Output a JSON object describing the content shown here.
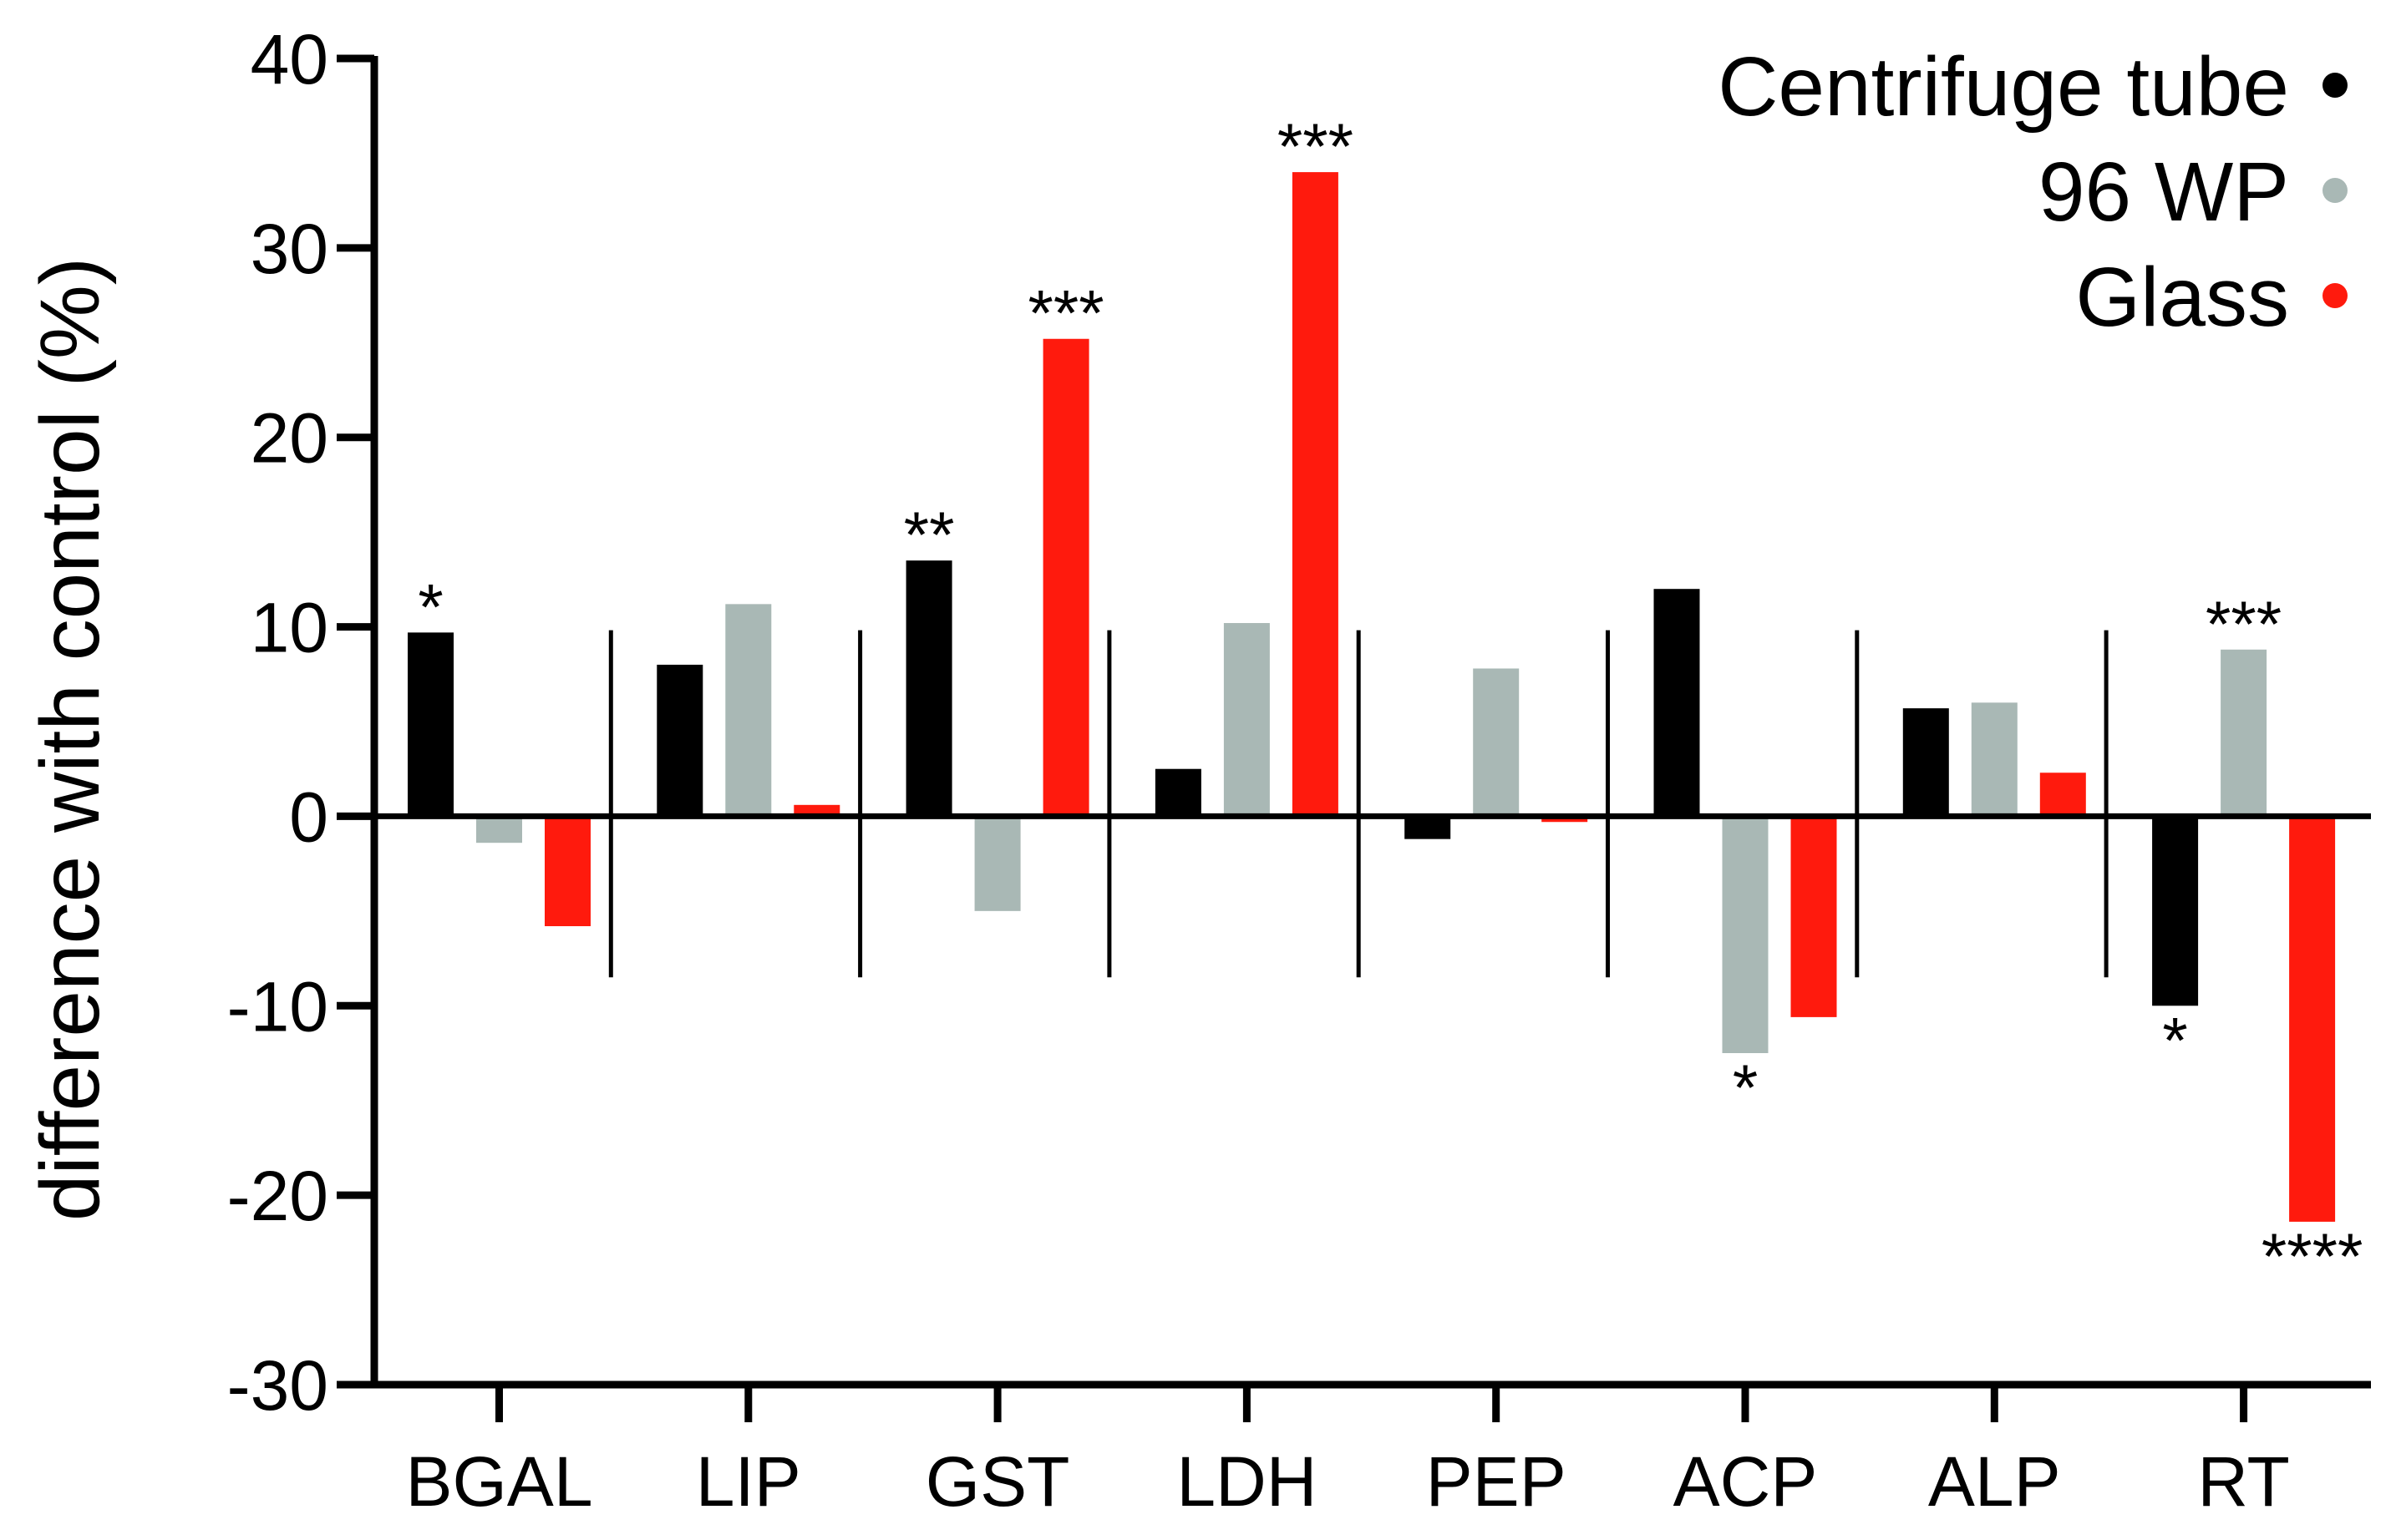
{
  "chart_data": {
    "type": "bar",
    "ylabel": "difference with control (%)",
    "xlabel": "",
    "ylim": [
      -30,
      40
    ],
    "yticks": [
      40,
      30,
      20,
      10,
      0,
      -10,
      -20,
      -30
    ],
    "categories": [
      "BGAL",
      "LIP",
      "GST",
      "LDH",
      "PEP",
      "ACP",
      "ALP",
      "RT"
    ],
    "series": [
      {
        "name": "Centrifuge tube",
        "color": "#000000",
        "values": [
          9.7,
          8.0,
          13.5,
          2.5,
          -1.2,
          12.0,
          5.7,
          -10.0
        ],
        "significance": [
          "*",
          "",
          "**",
          "",
          "",
          "",
          "",
          "*"
        ]
      },
      {
        "name": "96 WP",
        "color": "#a9b8b5",
        "values": [
          -1.4,
          11.2,
          -5.0,
          10.2,
          7.8,
          -12.5,
          6.0,
          8.8
        ],
        "significance": [
          "",
          "",
          "",
          "",
          "",
          "*",
          "",
          "***"
        ]
      },
      {
        "name": "Glass",
        "color": "#ff1a0d",
        "values": [
          -5.8,
          0.6,
          25.2,
          34.0,
          -0.3,
          -10.6,
          2.3,
          -21.4
        ],
        "significance": [
          "",
          "",
          "***",
          "***",
          "",
          "",
          "",
          "****"
        ]
      }
    ],
    "legend_position": "top-right",
    "grid": false
  }
}
